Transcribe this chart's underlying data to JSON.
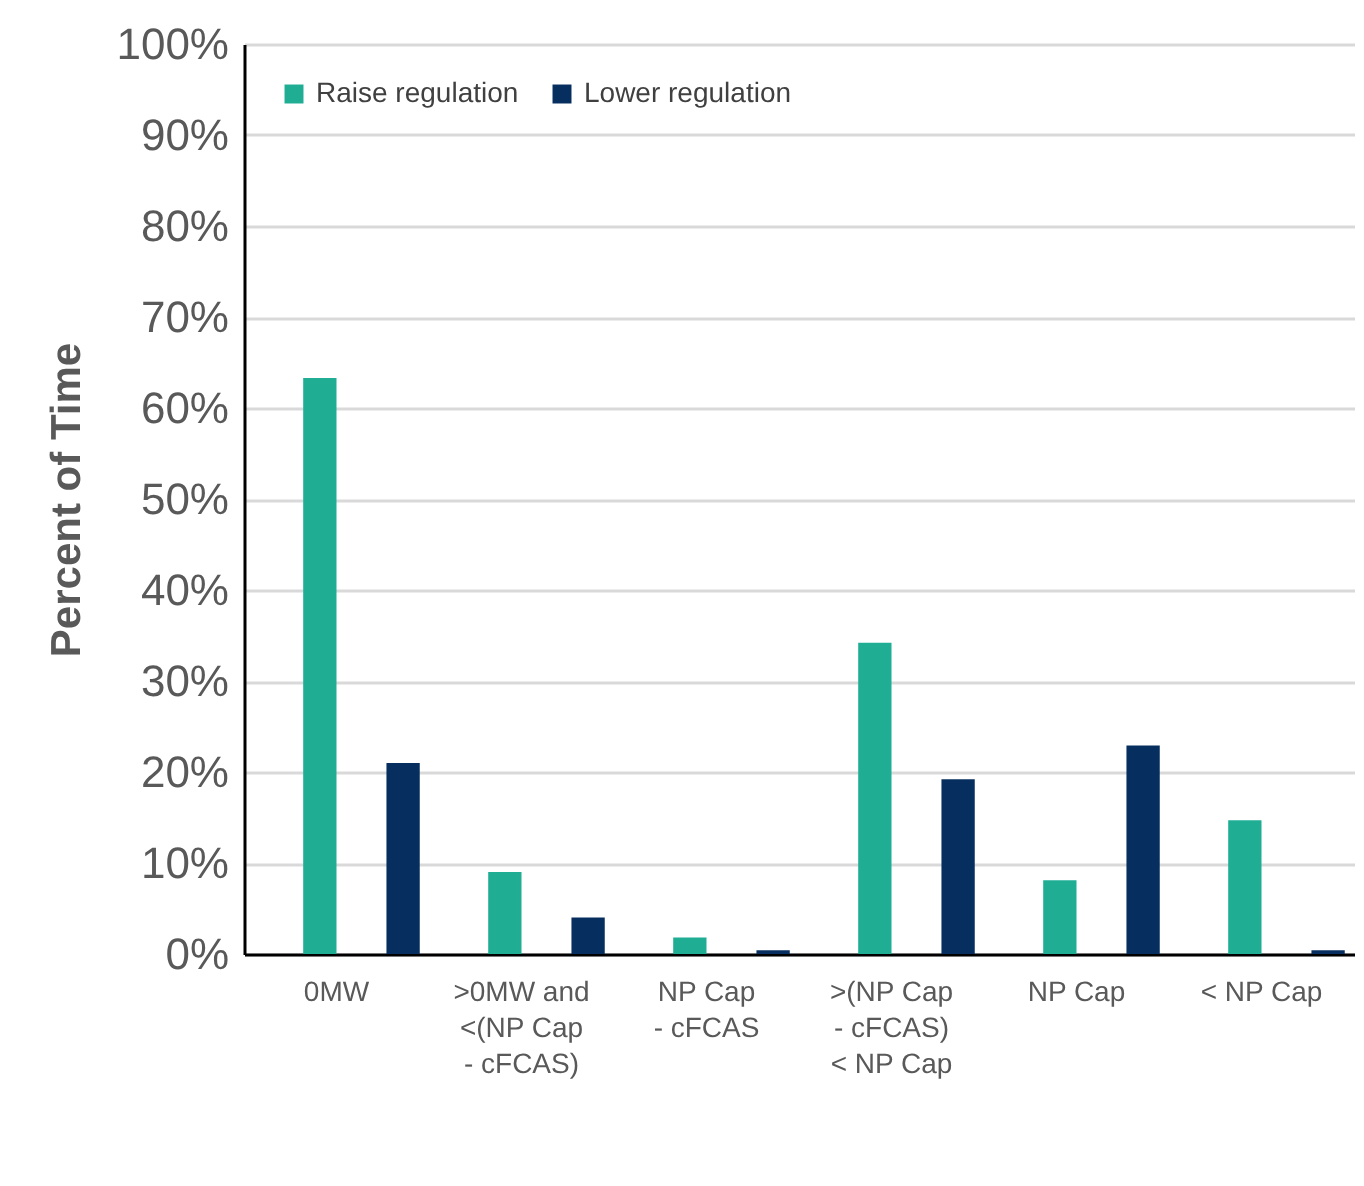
{
  "chart_data": {
    "type": "bar",
    "ylabel": "Percent of Time",
    "categories": [
      "0MW",
      ">0MW and <(NP Cap - cFCAS)",
      "NP Cap - cFCAS",
      ">(NP Cap - cFCAS) < NP Cap",
      "NP Cap",
      "< NP Cap"
    ],
    "series": [
      {
        "name": "Raise regulation",
        "color": "#1fae94",
        "values": [
          63.3,
          9,
          1.8,
          34.2,
          8.1,
          14.7
        ]
      },
      {
        "name": "Lower regulation",
        "color": "#062f5f",
        "values": [
          21,
          4,
          0.4,
          19.2,
          22.9,
          0.4
        ]
      }
    ],
    "ylim": [
      0,
      100
    ],
    "yticks": [
      {
        "value": 0,
        "label": "0%"
      },
      {
        "value": 10,
        "label": "10%"
      },
      {
        "value": 20,
        "label": "20%"
      },
      {
        "value": 30,
        "label": "30%"
      },
      {
        "value": 40,
        "label": "40%"
      },
      {
        "value": 50,
        "label": "50%"
      },
      {
        "value": 60,
        "label": "60%"
      },
      {
        "value": 70,
        "label": "70%"
      },
      {
        "value": 80,
        "label": "80%"
      },
      {
        "value": 90,
        "label": "90%"
      },
      {
        "value": 100,
        "label": "100%"
      }
    ],
    "grid": "y",
    "legend": "top left"
  }
}
